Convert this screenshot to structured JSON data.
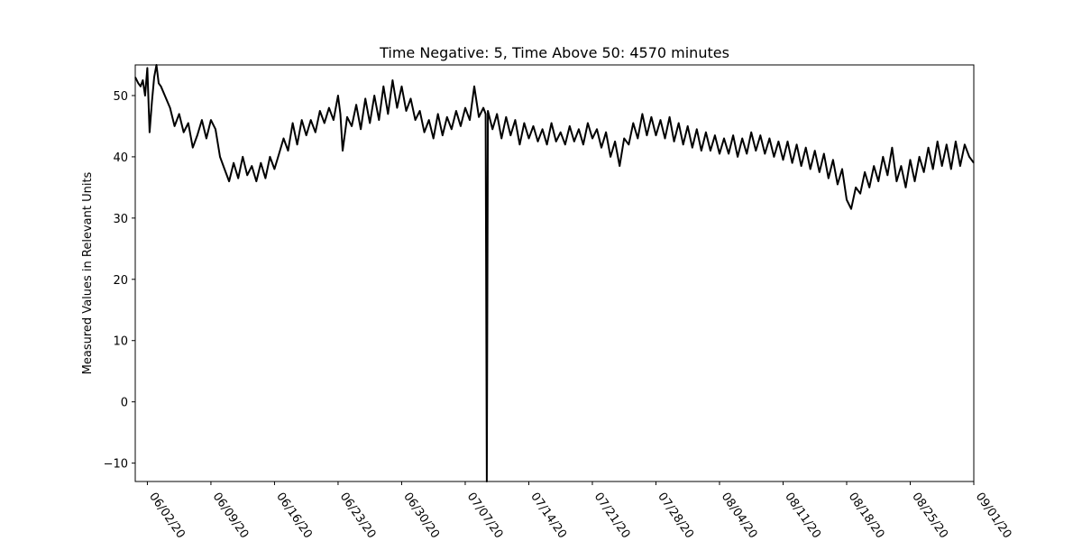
{
  "chart_data": {
    "type": "line",
    "title": "Time Negative: 5, Time Above 50: 4570 minutes",
    "xlabel": "",
    "ylabel": "Measured Values in Relevant Units",
    "x_type": "date",
    "xlim": [
      "2020-05-31T16:00",
      "2020-09-01T00:00"
    ],
    "ylim": [
      -13,
      55
    ],
    "x_ticks": [
      "06/02/20",
      "06/09/20",
      "06/16/20",
      "06/23/20",
      "06/30/20",
      "07/07/20",
      "07/14/20",
      "07/21/20",
      "07/28/20",
      "08/04/20",
      "08/11/20",
      "08/18/20",
      "08/25/20",
      "09/01/20"
    ],
    "y_ticks": [
      -10,
      0,
      10,
      20,
      30,
      40,
      50
    ],
    "grid": false,
    "legend": "none",
    "series": [
      {
        "color": "#000000",
        "points": [
          [
            "2020-05-31T16:00",
            53.0
          ],
          [
            "2020-06-01T00:00",
            52.0
          ],
          [
            "2020-06-01T06:00",
            51.5
          ],
          [
            "2020-06-01T12:00",
            52.5
          ],
          [
            "2020-06-01T18:00",
            50.0
          ],
          [
            "2020-06-02T00:00",
            54.5
          ],
          [
            "2020-06-02T06:00",
            44.0
          ],
          [
            "2020-06-02T12:00",
            49.0
          ],
          [
            "2020-06-02T18:00",
            53.0
          ],
          [
            "2020-06-03T00:00",
            55.0
          ],
          [
            "2020-06-03T06:00",
            52.0
          ],
          [
            "2020-06-03T12:00",
            51.5
          ],
          [
            "2020-06-04T12:00",
            48.0
          ],
          [
            "2020-06-05T00:00",
            45.0
          ],
          [
            "2020-06-05T12:00",
            47.0
          ],
          [
            "2020-06-06T00:00",
            44.0
          ],
          [
            "2020-06-06T12:00",
            45.5
          ],
          [
            "2020-06-07T00:00",
            41.5
          ],
          [
            "2020-06-07T12:00",
            43.5
          ],
          [
            "2020-06-08T00:00",
            46.0
          ],
          [
            "2020-06-08T12:00",
            43.0
          ],
          [
            "2020-06-09T00:00",
            46.0
          ],
          [
            "2020-06-09T12:00",
            44.5
          ],
          [
            "2020-06-10T00:00",
            40.0
          ],
          [
            "2020-06-10T12:00",
            38.0
          ],
          [
            "2020-06-11T00:00",
            36.0
          ],
          [
            "2020-06-11T12:00",
            39.0
          ],
          [
            "2020-06-12T00:00",
            36.5
          ],
          [
            "2020-06-12T12:00",
            40.0
          ],
          [
            "2020-06-13T00:00",
            37.0
          ],
          [
            "2020-06-13T12:00",
            38.5
          ],
          [
            "2020-06-14T00:00",
            36.0
          ],
          [
            "2020-06-14T12:00",
            39.0
          ],
          [
            "2020-06-15T00:00",
            36.5
          ],
          [
            "2020-06-15T12:00",
            40.0
          ],
          [
            "2020-06-16T00:00",
            38.0
          ],
          [
            "2020-06-16T12:00",
            40.5
          ],
          [
            "2020-06-17T00:00",
            43.0
          ],
          [
            "2020-06-17T12:00",
            41.0
          ],
          [
            "2020-06-18T00:00",
            45.5
          ],
          [
            "2020-06-18T12:00",
            42.0
          ],
          [
            "2020-06-19T00:00",
            46.0
          ],
          [
            "2020-06-19T12:00",
            43.5
          ],
          [
            "2020-06-20T00:00",
            46.0
          ],
          [
            "2020-06-20T12:00",
            44.0
          ],
          [
            "2020-06-21T00:00",
            47.5
          ],
          [
            "2020-06-21T12:00",
            45.5
          ],
          [
            "2020-06-22T00:00",
            48.0
          ],
          [
            "2020-06-22T12:00",
            46.0
          ],
          [
            "2020-06-23T00:00",
            50.0
          ],
          [
            "2020-06-23T06:00",
            47.0
          ],
          [
            "2020-06-23T12:00",
            41.0
          ],
          [
            "2020-06-24T00:00",
            46.5
          ],
          [
            "2020-06-24T12:00",
            45.0
          ],
          [
            "2020-06-25T00:00",
            48.5
          ],
          [
            "2020-06-25T12:00",
            44.5
          ],
          [
            "2020-06-26T00:00",
            49.5
          ],
          [
            "2020-06-26T12:00",
            45.5
          ],
          [
            "2020-06-27T00:00",
            50.0
          ],
          [
            "2020-06-27T12:00",
            46.0
          ],
          [
            "2020-06-28T00:00",
            51.5
          ],
          [
            "2020-06-28T12:00",
            47.0
          ],
          [
            "2020-06-29T00:00",
            52.5
          ],
          [
            "2020-06-29T12:00",
            48.0
          ],
          [
            "2020-06-30T00:00",
            51.5
          ],
          [
            "2020-06-30T12:00",
            47.5
          ],
          [
            "2020-07-01T00:00",
            49.5
          ],
          [
            "2020-07-01T12:00",
            46.0
          ],
          [
            "2020-07-02T00:00",
            47.5
          ],
          [
            "2020-07-02T12:00",
            44.0
          ],
          [
            "2020-07-03T00:00",
            46.0
          ],
          [
            "2020-07-03T12:00",
            43.0
          ],
          [
            "2020-07-04T00:00",
            47.0
          ],
          [
            "2020-07-04T12:00",
            43.5
          ],
          [
            "2020-07-05T00:00",
            46.5
          ],
          [
            "2020-07-05T12:00",
            44.5
          ],
          [
            "2020-07-06T00:00",
            47.5
          ],
          [
            "2020-07-06T12:00",
            45.0
          ],
          [
            "2020-07-07T00:00",
            48.0
          ],
          [
            "2020-07-07T12:00",
            46.0
          ],
          [
            "2020-07-08T00:00",
            51.5
          ],
          [
            "2020-07-08T12:00",
            46.5
          ],
          [
            "2020-07-09T00:00",
            48.0
          ],
          [
            "2020-07-09T06:00",
            47.0
          ],
          [
            "2020-07-09T09:00",
            -13.0
          ],
          [
            "2020-07-09T12:00",
            47.5
          ],
          [
            "2020-07-10T00:00",
            44.5
          ],
          [
            "2020-07-10T12:00",
            47.0
          ],
          [
            "2020-07-11T00:00",
            43.0
          ],
          [
            "2020-07-11T12:00",
            46.5
          ],
          [
            "2020-07-12T00:00",
            43.5
          ],
          [
            "2020-07-12T12:00",
            46.0
          ],
          [
            "2020-07-13T00:00",
            42.0
          ],
          [
            "2020-07-13T12:00",
            45.5
          ],
          [
            "2020-07-14T00:00",
            43.0
          ],
          [
            "2020-07-14T12:00",
            45.0
          ],
          [
            "2020-07-15T00:00",
            42.5
          ],
          [
            "2020-07-15T12:00",
            44.5
          ],
          [
            "2020-07-16T00:00",
            42.0
          ],
          [
            "2020-07-16T12:00",
            45.5
          ],
          [
            "2020-07-17T00:00",
            42.5
          ],
          [
            "2020-07-17T12:00",
            44.0
          ],
          [
            "2020-07-18T00:00",
            42.0
          ],
          [
            "2020-07-18T12:00",
            45.0
          ],
          [
            "2020-07-19T00:00",
            42.5
          ],
          [
            "2020-07-19T12:00",
            44.5
          ],
          [
            "2020-07-20T00:00",
            42.0
          ],
          [
            "2020-07-20T12:00",
            45.5
          ],
          [
            "2020-07-21T00:00",
            43.0
          ],
          [
            "2020-07-21T12:00",
            44.5
          ],
          [
            "2020-07-22T00:00",
            41.5
          ],
          [
            "2020-07-22T12:00",
            44.0
          ],
          [
            "2020-07-23T00:00",
            40.0
          ],
          [
            "2020-07-23T12:00",
            42.5
          ],
          [
            "2020-07-24T00:00",
            38.5
          ],
          [
            "2020-07-24T12:00",
            43.0
          ],
          [
            "2020-07-25T00:00",
            42.0
          ],
          [
            "2020-07-25T12:00",
            45.5
          ],
          [
            "2020-07-26T00:00",
            43.0
          ],
          [
            "2020-07-26T12:00",
            47.0
          ],
          [
            "2020-07-27T00:00",
            43.5
          ],
          [
            "2020-07-27T12:00",
            46.5
          ],
          [
            "2020-07-28T00:00",
            43.5
          ],
          [
            "2020-07-28T12:00",
            46.0
          ],
          [
            "2020-07-29T00:00",
            43.0
          ],
          [
            "2020-07-29T12:00",
            46.5
          ],
          [
            "2020-07-30T00:00",
            42.5
          ],
          [
            "2020-07-30T12:00",
            45.5
          ],
          [
            "2020-07-31T00:00",
            42.0
          ],
          [
            "2020-07-31T12:00",
            45.0
          ],
          [
            "2020-08-01T00:00",
            41.5
          ],
          [
            "2020-08-01T12:00",
            44.5
          ],
          [
            "2020-08-02T00:00",
            41.0
          ],
          [
            "2020-08-02T12:00",
            44.0
          ],
          [
            "2020-08-03T00:00",
            41.0
          ],
          [
            "2020-08-03T12:00",
            43.5
          ],
          [
            "2020-08-04T00:00",
            40.5
          ],
          [
            "2020-08-04T12:00",
            43.0
          ],
          [
            "2020-08-05T00:00",
            40.5
          ],
          [
            "2020-08-05T12:00",
            43.5
          ],
          [
            "2020-08-06T00:00",
            40.0
          ],
          [
            "2020-08-06T12:00",
            43.0
          ],
          [
            "2020-08-07T00:00",
            40.5
          ],
          [
            "2020-08-07T12:00",
            44.0
          ],
          [
            "2020-08-08T00:00",
            41.0
          ],
          [
            "2020-08-08T12:00",
            43.5
          ],
          [
            "2020-08-09T00:00",
            40.5
          ],
          [
            "2020-08-09T12:00",
            43.0
          ],
          [
            "2020-08-10T00:00",
            40.0
          ],
          [
            "2020-08-10T12:00",
            42.5
          ],
          [
            "2020-08-11T00:00",
            39.5
          ],
          [
            "2020-08-11T12:00",
            42.5
          ],
          [
            "2020-08-12T00:00",
            39.0
          ],
          [
            "2020-08-12T12:00",
            42.0
          ],
          [
            "2020-08-13T00:00",
            38.5
          ],
          [
            "2020-08-13T12:00",
            41.5
          ],
          [
            "2020-08-14T00:00",
            38.0
          ],
          [
            "2020-08-14T12:00",
            41.0
          ],
          [
            "2020-08-15T00:00",
            37.5
          ],
          [
            "2020-08-15T12:00",
            40.5
          ],
          [
            "2020-08-16T00:00",
            36.5
          ],
          [
            "2020-08-16T12:00",
            39.5
          ],
          [
            "2020-08-17T00:00",
            35.5
          ],
          [
            "2020-08-17T12:00",
            38.0
          ],
          [
            "2020-08-18T00:00",
            33.0
          ],
          [
            "2020-08-18T12:00",
            31.5
          ],
          [
            "2020-08-19T00:00",
            35.0
          ],
          [
            "2020-08-19T12:00",
            34.0
          ],
          [
            "2020-08-20T00:00",
            37.5
          ],
          [
            "2020-08-20T12:00",
            35.0
          ],
          [
            "2020-08-21T00:00",
            38.5
          ],
          [
            "2020-08-21T12:00",
            36.0
          ],
          [
            "2020-08-22T00:00",
            40.0
          ],
          [
            "2020-08-22T12:00",
            37.0
          ],
          [
            "2020-08-23T00:00",
            41.5
          ],
          [
            "2020-08-23T12:00",
            36.0
          ],
          [
            "2020-08-24T00:00",
            38.5
          ],
          [
            "2020-08-24T12:00",
            35.0
          ],
          [
            "2020-08-25T00:00",
            39.5
          ],
          [
            "2020-08-25T12:00",
            36.0
          ],
          [
            "2020-08-26T00:00",
            40.0
          ],
          [
            "2020-08-26T12:00",
            37.5
          ],
          [
            "2020-08-27T00:00",
            41.5
          ],
          [
            "2020-08-27T12:00",
            38.0
          ],
          [
            "2020-08-28T00:00",
            42.5
          ],
          [
            "2020-08-28T12:00",
            38.5
          ],
          [
            "2020-08-29T00:00",
            42.0
          ],
          [
            "2020-08-29T12:00",
            38.0
          ],
          [
            "2020-08-30T00:00",
            42.5
          ],
          [
            "2020-08-30T12:00",
            38.5
          ],
          [
            "2020-08-31T00:00",
            42.0
          ],
          [
            "2020-08-31T12:00",
            40.0
          ],
          [
            "2020-09-01T00:00",
            39.0
          ]
        ]
      }
    ]
  }
}
